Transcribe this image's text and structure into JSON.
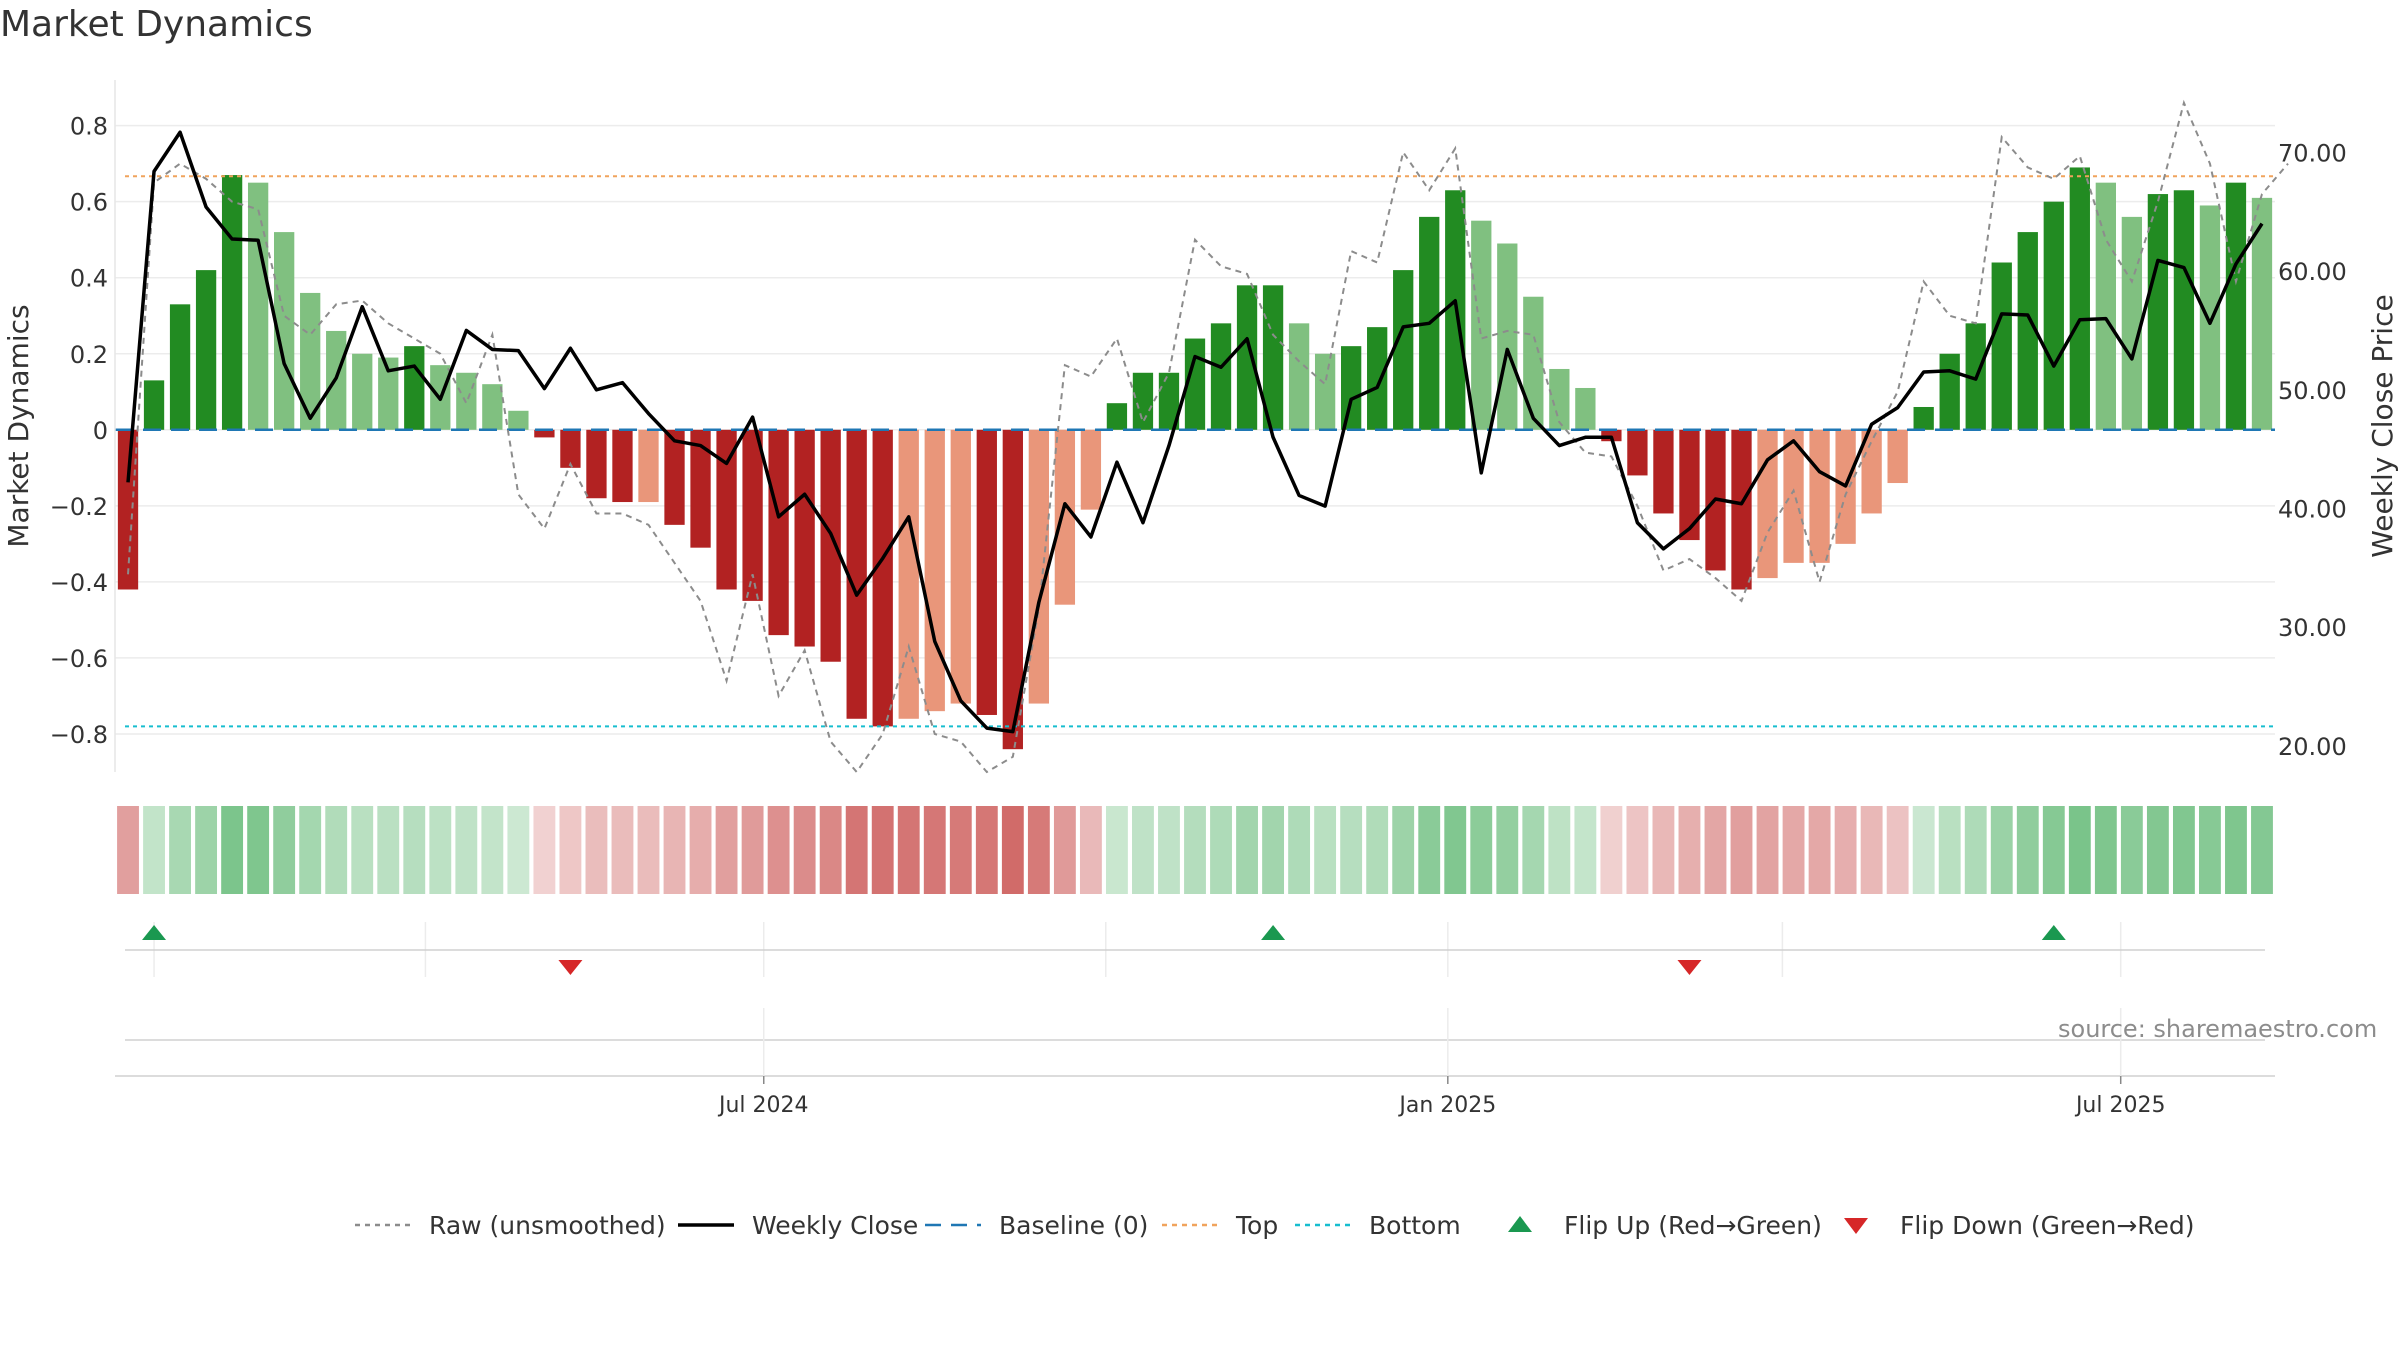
{
  "title": "Market Dynamics",
  "source": "source: sharemaestro.com",
  "chart_data": {
    "type": "bar",
    "x_start_date": "2024-01-12",
    "x_interval_days": 7,
    "x_ticks": [
      "Jul 2024",
      "Jan 2025",
      "Jul 2025"
    ],
    "x_tick_dates": [
      "2024-07-01",
      "2025-01-01",
      "2025-07-01"
    ],
    "y_left": {
      "label": "Market Dynamics",
      "range": [
        -0.9,
        0.92
      ],
      "ticks": [
        -0.8,
        -0.6,
        -0.4,
        -0.2,
        0,
        0.2,
        0.4,
        0.6,
        0.8
      ],
      "tick_labels": [
        "−0.8",
        "−0.6",
        "−0.4",
        "−0.2",
        "0",
        "0.2",
        "0.4",
        "0.6",
        "0.8"
      ]
    },
    "y_right": {
      "label": "Weekly Close Price",
      "range": [
        17.8,
        76.1
      ],
      "ticks": [
        20,
        30,
        40,
        50,
        60,
        70
      ],
      "tick_labels": [
        "20.00",
        "30.00",
        "40.00",
        "50.00",
        "60.00",
        "70.00"
      ]
    },
    "dynamics": [
      -0.42,
      0.13,
      0.33,
      0.42,
      0.67,
      0.65,
      0.52,
      0.36,
      0.26,
      0.2,
      0.19,
      0.22,
      0.17,
      0.15,
      0.12,
      0.05,
      -0.02,
      -0.1,
      -0.18,
      -0.19,
      -0.19,
      -0.25,
      -0.31,
      -0.42,
      -0.45,
      -0.54,
      -0.57,
      -0.61,
      -0.76,
      -0.78,
      -0.76,
      -0.74,
      -0.72,
      -0.75,
      -0.84,
      -0.72,
      -0.46,
      -0.21,
      0.07,
      0.15,
      0.15,
      0.24,
      0.28,
      0.38,
      0.38,
      0.28,
      0.2,
      0.22,
      0.27,
      0.42,
      0.56,
      0.63,
      0.55,
      0.49,
      0.35,
      0.16,
      0.11,
      -0.03,
      -0.12,
      -0.22,
      -0.29,
      -0.37,
      -0.42,
      -0.39,
      -0.35,
      -0.35,
      -0.3,
      -0.22,
      -0.14,
      0.06,
      0.2,
      0.28,
      0.44,
      0.52,
      0.6,
      0.69,
      0.65,
      0.56,
      0.62,
      0.63,
      0.59,
      0.65,
      0.61
    ],
    "bar_shade": [
      "dark",
      "dark",
      "dark",
      "dark",
      "dark",
      "light",
      "light",
      "light",
      "light",
      "light",
      "light",
      "dark",
      "light",
      "light",
      "light",
      "light",
      "dark",
      "dark",
      "dark",
      "dark",
      "light",
      "dark",
      "dark",
      "dark",
      "dark",
      "dark",
      "dark",
      "dark",
      "dark",
      "dark",
      "light",
      "light",
      "light",
      "dark",
      "dark",
      "light",
      "light",
      "light",
      "dark",
      "dark",
      "dark",
      "dark",
      "dark",
      "dark",
      "dark",
      "light",
      "light",
      "dark",
      "dark",
      "dark",
      "dark",
      "dark",
      "light",
      "light",
      "light",
      "light",
      "light",
      "dark",
      "dark",
      "dark",
      "dark",
      "dark",
      "dark",
      "light",
      "light",
      "light",
      "light",
      "light",
      "light",
      "dark",
      "dark",
      "dark",
      "dark",
      "dark",
      "dark",
      "dark",
      "light",
      "light",
      "dark",
      "dark",
      "light",
      "dark",
      "light"
    ],
    "raw": [
      -0.38,
      0.65,
      0.7,
      0.66,
      0.6,
      0.58,
      0.3,
      0.25,
      0.33,
      0.34,
      0.28,
      0.24,
      0.2,
      0.07,
      0.25,
      -0.17,
      -0.26,
      -0.09,
      -0.22,
      -0.22,
      -0.25,
      -0.35,
      -0.45,
      -0.66,
      -0.38,
      -0.7,
      -0.58,
      -0.82,
      -0.9,
      -0.8,
      -0.57,
      -0.8,
      -0.82,
      -0.9,
      -0.86,
      -0.47,
      0.17,
      0.14,
      0.24,
      0.02,
      0.15,
      0.5,
      0.43,
      0.41,
      0.25,
      0.18,
      0.12,
      0.47,
      0.44,
      0.73,
      0.63,
      0.74,
      0.24,
      0.26,
      0.25,
      0.02,
      -0.06,
      -0.07,
      -0.2,
      -0.37,
      -0.34,
      -0.39,
      -0.45,
      -0.27,
      -0.16,
      -0.4,
      -0.17,
      -0.03,
      0.1,
      0.39,
      0.3,
      0.28,
      0.77,
      0.69,
      0.66,
      0.72,
      0.5,
      0.39,
      0.6,
      0.86,
      0.7,
      0.39,
      0.62,
      0.7
    ],
    "weekly_close": [
      42.2,
      68.4,
      71.7,
      65.4,
      62.7,
      62.6,
      52.2,
      47.6,
      51.0,
      57.0,
      51.6,
      52.0,
      49.2,
      55.0,
      53.4,
      53.3,
      50.1,
      53.5,
      50.0,
      50.6,
      48.0,
      45.7,
      45.3,
      43.8,
      47.7,
      39.3,
      41.2,
      37.9,
      32.7,
      35.8,
      39.3,
      28.8,
      23.8,
      21.5,
      21.2,
      32.1,
      40.4,
      37.6,
      43.9,
      38.8,
      45.3,
      52.8,
      51.9,
      54.3,
      46.0,
      41.1,
      40.2,
      49.2,
      50.2,
      55.3,
      55.6,
      57.5,
      43.0,
      53.4,
      47.6,
      45.3,
      46.0,
      46.0,
      38.8,
      36.6,
      38.3,
      40.8,
      40.4,
      44.1,
      45.7,
      43.1,
      41.9,
      47.1,
      48.5,
      51.5,
      51.6,
      50.9,
      56.4,
      56.3,
      52.0,
      55.9,
      56.0,
      52.6,
      60.9,
      60.3,
      55.6,
      60.6,
      64.0
    ],
    "baseline": 0,
    "top_threshold": 0.667,
    "bottom_threshold": -0.78,
    "flips_up": [
      "2024-01-19",
      "2024-11-15",
      "2025-06-13"
    ],
    "flips_down": [
      "2024-05-10",
      "2025-03-07"
    ],
    "legend": {
      "placement": "bottom-center",
      "items": [
        {
          "label": "Raw (unsmoothed)",
          "kind": "line-dotted",
          "color": "#8c8c8c"
        },
        {
          "label": "Weekly Close",
          "kind": "line-solid",
          "color": "#000000"
        },
        {
          "label": "Baseline (0)",
          "kind": "line-dashed",
          "color": "#1f77b4"
        },
        {
          "label": "Top",
          "kind": "line-dotted",
          "color": "#f0a35c"
        },
        {
          "label": "Bottom",
          "kind": "line-dotted",
          "color": "#17becf"
        },
        {
          "label": "Flip Up (Red→Green)",
          "kind": "marker-up",
          "color": "#1a9850"
        },
        {
          "label": "Flip Down (Green→Red)",
          "kind": "marker-down",
          "color": "#d62728"
        }
      ]
    },
    "colors": {
      "pos_dark": "#228b22",
      "pos_light": "#80c080",
      "neg_dark": "#b22222",
      "neg_light": "#e9967a",
      "strip_pos": "#4caf61",
      "strip_neg": "#c9514f",
      "raw": "#8c8c8c",
      "close": "#000000",
      "baseline": "#1f77b4",
      "top": "#f0a35c",
      "bottom": "#17becf",
      "flip_up": "#1a9850",
      "flip_down": "#d62728"
    },
    "grid": true
  }
}
